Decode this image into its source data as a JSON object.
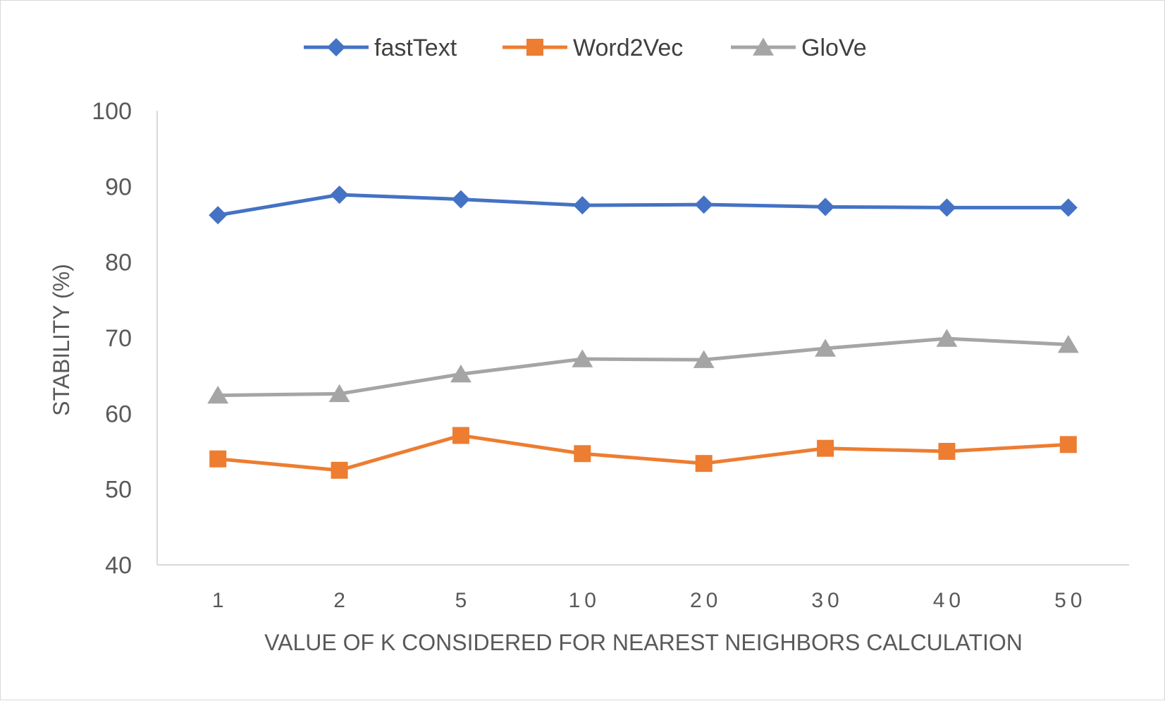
{
  "chart_data": {
    "type": "line",
    "categories": [
      "1",
      "2",
      "5",
      "10",
      "20",
      "30",
      "40",
      "50"
    ],
    "series": [
      {
        "name": "fastText",
        "marker": "diamond",
        "color": "#4472c4",
        "values": [
          86.2,
          88.9,
          88.3,
          87.5,
          87.6,
          87.3,
          87.2,
          87.2
        ]
      },
      {
        "name": "Word2Vec",
        "marker": "square",
        "color": "#ed7d31",
        "values": [
          54.0,
          52.5,
          57.1,
          54.7,
          53.4,
          55.4,
          55.0,
          55.9
        ]
      },
      {
        "name": "GloVe",
        "marker": "triangle",
        "color": "#a5a5a5",
        "values": [
          62.4,
          62.6,
          65.2,
          67.2,
          67.1,
          68.6,
          69.9,
          69.1
        ]
      }
    ],
    "title": "",
    "xlabel": "VALUE OF K CONSIDERED FOR NEAREST NEIGHBORS CALCULATION",
    "ylabel": "STABILITY (%)",
    "ylim": [
      40,
      100
    ],
    "yticks": [
      "40",
      "50",
      "60",
      "70",
      "80",
      "90",
      "100"
    ],
    "grid": false,
    "legend_position": "top"
  }
}
